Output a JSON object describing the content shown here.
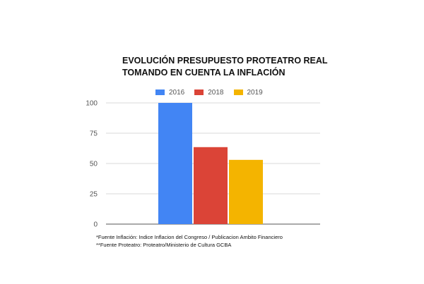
{
  "chart_data": {
    "type": "bar",
    "title": "EVOLUCIÓN PRESUPUESTO PROTEATRO REAL",
    "subtitle": "TOMANDO EN CUENTA LA INFLACIÓN",
    "categories": [
      ""
    ],
    "series": [
      {
        "name": "2016",
        "values": [
          100
        ],
        "color": "#4285f4"
      },
      {
        "name": "2018",
        "values": [
          63.5
        ],
        "color": "#db4437"
      },
      {
        "name": "2019",
        "values": [
          53
        ],
        "color": "#f4b400"
      }
    ],
    "ylim": [
      0,
      100
    ],
    "yticks": [
      "0",
      "25",
      "50",
      "75",
      "100"
    ],
    "grid": true,
    "legend_position": "top"
  },
  "footnotes": {
    "line1": "*Fuente Inflación: Indice Inflacion del Congreso / Publicacion Ambito Financiero",
    "line2": "**Fuente Proteatro: Proteatro/Ministerio de Cultura GCBA"
  }
}
